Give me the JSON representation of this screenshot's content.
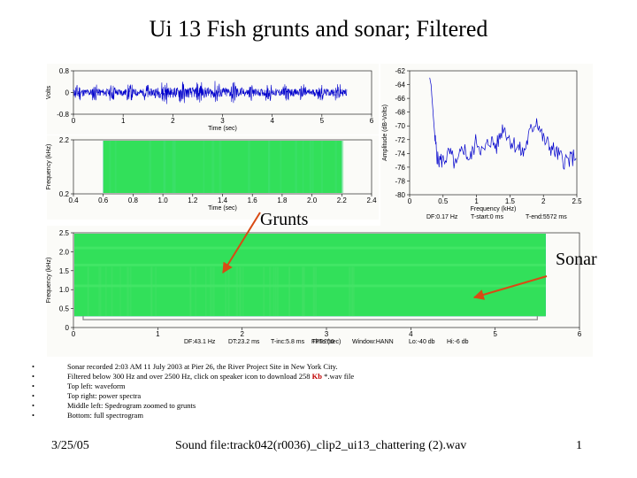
{
  "slide": {
    "title": "Ui 13 Fish grunts and sonar; Filtered",
    "callouts": {
      "grunts": "Grunts",
      "sonar": "Sonar"
    },
    "bullets": [
      "Sonar recorded 2:03 AM 11 July 2003 at Pier 26, the River Project Site in New York City.",
      "Filtered below 300 Hz and over 2500 Hz, click on speaker icon to download 258 ",
      "Top left: waveform",
      "Top right: power spectra",
      "Middle left: Spedrogram zoomed to grunts",
      "Bottom: full spectrogram"
    ],
    "download_size": "Kb",
    "download_tail": " *.wav file",
    "footer": {
      "date": "3/25/05",
      "sound_file": "Sound file:track042(r0036)_clip2_ui13_chattering (2).wav",
      "page": "1"
    }
  },
  "chart_data": [
    {
      "type": "line",
      "panel": "waveform",
      "xlabel": "Time (sec)",
      "ylabel": "Volts",
      "xlim": [
        0,
        6
      ],
      "ylim": [
        -0.8,
        0.8
      ],
      "x_ticks": [
        "0",
        "1",
        "2",
        "3",
        "4",
        "5",
        "6"
      ],
      "y_ticks": [
        "0.8",
        "0",
        "-0.8"
      ],
      "data_extent_x": [
        0,
        5.5
      ],
      "series": [
        {
          "color": "#0000cc"
        }
      ]
    },
    {
      "type": "line",
      "panel": "power_spectrum",
      "xlabel": "Frequency (kHz)",
      "ylabel": "Amplitude (dB-Volts)",
      "xlim": [
        0,
        2.5
      ],
      "ylim": [
        -80,
        -62
      ],
      "x_ticks": [
        "0",
        "0.5",
        "1",
        "1.5",
        "2",
        "2.5"
      ],
      "y_ticks": [
        "-62",
        "-64",
        "-66",
        "-68",
        "-70",
        "-72",
        "-74",
        "-76",
        "-78",
        "-80"
      ],
      "x": [
        0.3,
        0.32,
        0.35,
        0.38,
        0.42,
        0.5,
        0.6,
        0.7,
        0.8,
        0.9,
        1.0,
        1.1,
        1.2,
        1.3,
        1.4,
        1.5,
        1.6,
        1.7,
        1.8,
        1.9,
        2.0,
        2.1,
        2.2,
        2.3,
        2.4,
        2.5
      ],
      "y": [
        -63,
        -64,
        -68,
        -72,
        -75,
        -75,
        -74,
        -76,
        -73,
        -75,
        -72,
        -74,
        -72,
        -73,
        -70,
        -72,
        -73,
        -74,
        -71,
        -69,
        -72,
        -73,
        -74,
        -75,
        -75,
        -74
      ],
      "info": {
        "df": "DF:0.17 Hz",
        "tstart": "T-start:0 ms",
        "tend": "T-end:5572 ms"
      },
      "series": [
        {
          "color": "#0000cc"
        }
      ]
    },
    {
      "type": "heatmap",
      "panel": "zoomed_spectrogram",
      "xlabel": "Time (sec)",
      "ylabel": "Frequency (kHz)",
      "xlim": [
        0.4,
        2.4
      ],
      "ylim": [
        0.2,
        2.2
      ],
      "x_ticks": [
        "0.4",
        "0.6",
        "0.8",
        "1.0",
        "1.2",
        "1.4",
        "1.6",
        "1.8",
        "2.0",
        "2.2",
        "2.4"
      ],
      "y_ticks": [
        "2.2",
        "0.2"
      ],
      "data_extent_x": [
        0.6,
        2.2
      ]
    },
    {
      "type": "heatmap",
      "panel": "full_spectrogram",
      "xlabel": "Time (sec)",
      "ylabel": "Frequency (kHz)",
      "xlim": [
        0,
        6
      ],
      "ylim": [
        0,
        2.5
      ],
      "x_ticks": [
        "0",
        "1",
        "2",
        "3",
        "4",
        "5",
        "6"
      ],
      "y_ticks": [
        "2.5",
        "2.0",
        "1.5",
        "1.0",
        "0.5",
        "0"
      ],
      "data_extent_x": [
        0,
        5.6
      ],
      "data_extent_y": [
        0.3,
        2.5
      ],
      "info": {
        "df": "DF:43.1 Hz",
        "dt": "DT:23.2 ms",
        "tinc": "T-inc:5.8 ms",
        "fft": "FFT:256",
        "window": "Window:HANN",
        "lo": "Lo:-40 db",
        "hi": "Hi:-6 db"
      }
    }
  ]
}
